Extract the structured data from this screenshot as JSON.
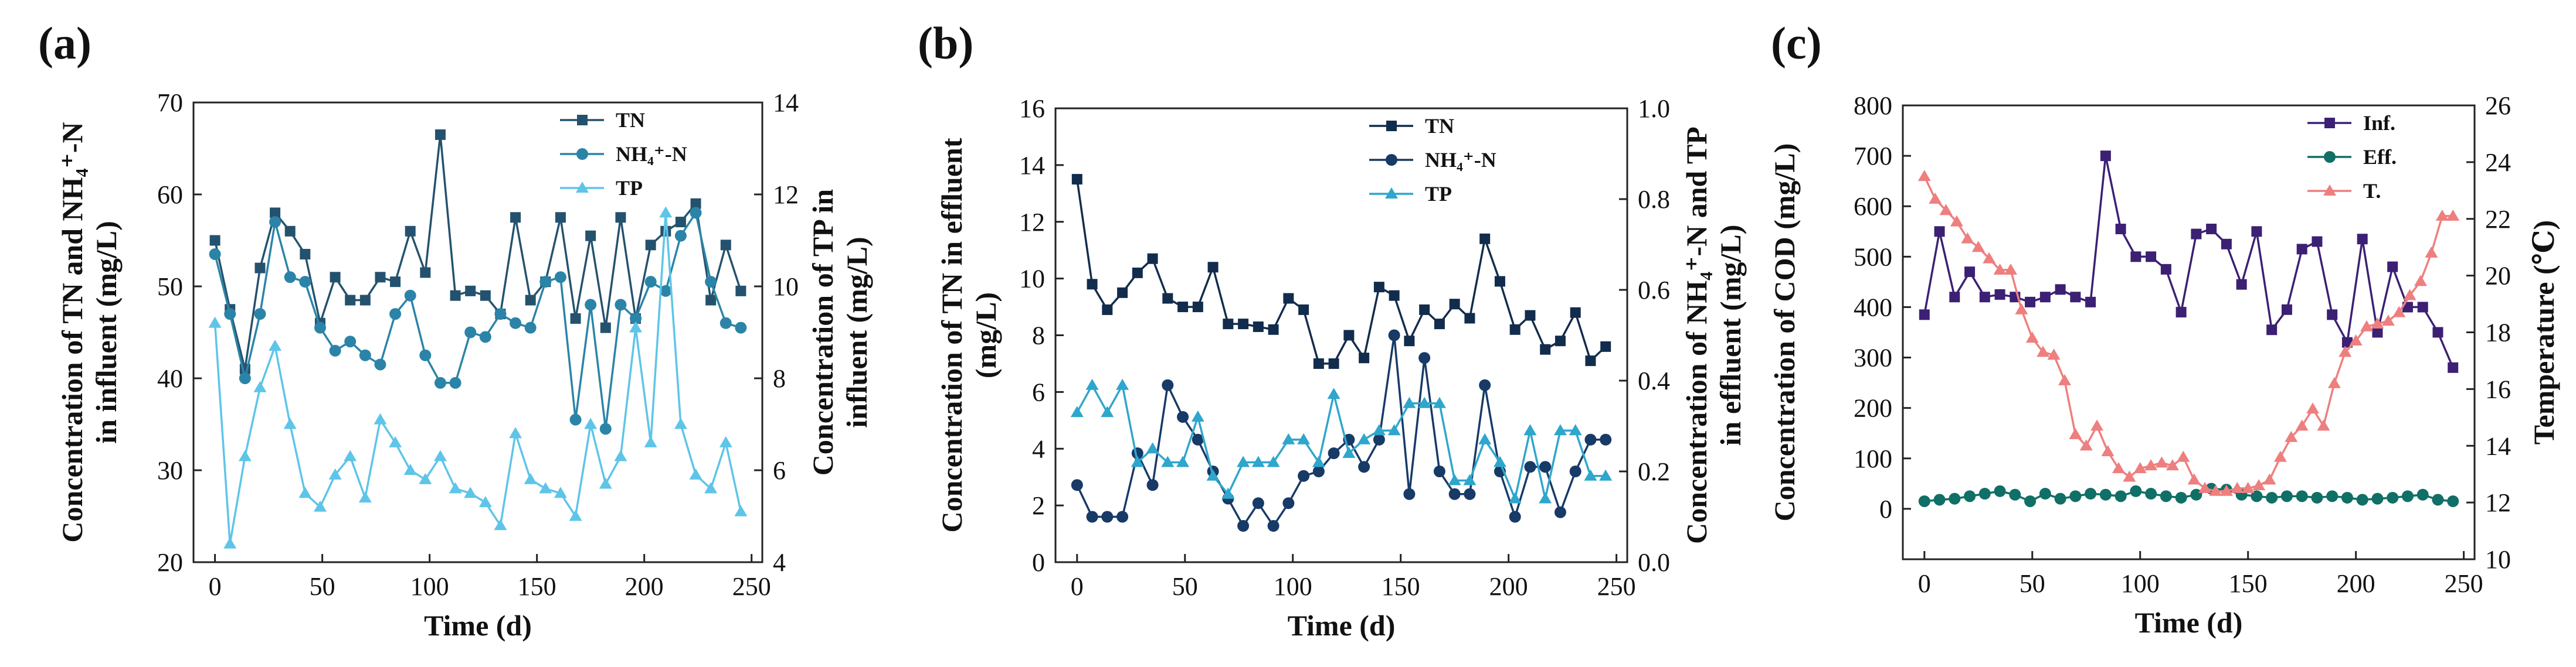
{
  "chart_data": [
    {
      "type": "line",
      "panel_label": "(a)",
      "x_label": "Time (d)",
      "xlim": [
        -10,
        255
      ],
      "x_ticks": [
        0,
        50,
        100,
        150,
        200,
        250
      ],
      "y_label": [
        "Concentration of TN and NH₄⁺-N",
        "in influent (mg/L)"
      ],
      "ylim": [
        20,
        70
      ],
      "y_ticks": [
        20,
        30,
        40,
        50,
        60,
        70
      ],
      "y2_label": [
        "Concentration of TP in",
        "influent (mg/L)"
      ],
      "y2lim": [
        4,
        14
      ],
      "y2_ticks": [
        4,
        6,
        8,
        10,
        12,
        14
      ],
      "legend_position": "top-right",
      "series": [
        {
          "name": "TN",
          "marker": "square",
          "color": "#24526e",
          "axis": "left",
          "x": [
            0,
            7,
            14,
            21,
            28,
            35,
            42,
            49,
            56,
            63,
            70,
            77,
            84,
            91,
            98,
            105,
            112,
            119,
            126,
            133,
            140,
            147,
            154,
            161,
            168,
            175,
            182,
            189,
            196,
            203,
            210,
            217,
            224,
            231,
            238,
            245
          ],
          "y": [
            55,
            47.5,
            41,
            52,
            58,
            56,
            53.5,
            46,
            51,
            48.5,
            48.5,
            51,
            50.5,
            56,
            51.5,
            66.5,
            49,
            49.5,
            49,
            47,
            57.5,
            48.5,
            50.5,
            57.5,
            46.5,
            55.5,
            45.5,
            57.5,
            46.5,
            54.5,
            56,
            57,
            59,
            48.5,
            54.5,
            49.5
          ]
        },
        {
          "name": "NH₄⁺-N",
          "marker": "circle",
          "color": "#2b84a8",
          "axis": "left",
          "x": [
            0,
            7,
            14,
            21,
            28,
            35,
            42,
            49,
            56,
            63,
            70,
            77,
            84,
            91,
            98,
            105,
            112,
            119,
            126,
            133,
            140,
            147,
            154,
            161,
            168,
            175,
            182,
            189,
            196,
            203,
            210,
            217,
            224,
            231,
            238,
            245
          ],
          "y": [
            53.5,
            47,
            40,
            47,
            57,
            51,
            50.5,
            45.5,
            43,
            44,
            42.5,
            41.5,
            47,
            49,
            42.5,
            39.5,
            39.5,
            45,
            44.5,
            47,
            46,
            45.5,
            50.5,
            51,
            35.5,
            48,
            34.5,
            48,
            46.5,
            50.5,
            49.5,
            55.5,
            58,
            50.5,
            46,
            45.5
          ]
        },
        {
          "name": "TP",
          "marker": "triangle",
          "color": "#5ec5e8",
          "axis": "right",
          "x": [
            0,
            7,
            14,
            21,
            28,
            35,
            42,
            49,
            56,
            63,
            70,
            77,
            84,
            91,
            98,
            105,
            112,
            119,
            126,
            133,
            140,
            147,
            154,
            161,
            168,
            175,
            182,
            189,
            196,
            203,
            210,
            217,
            224,
            231,
            238,
            245
          ],
          "y": [
            9.2,
            4.4,
            6.3,
            7.8,
            8.7,
            7,
            5.5,
            5.2,
            5.9,
            6.3,
            5.4,
            7.1,
            6.6,
            6,
            5.8,
            6.3,
            5.6,
            5.5,
            5.3,
            4.8,
            6.8,
            5.8,
            5.6,
            5.5,
            5,
            7,
            5.7,
            6.3,
            9.1,
            6.6,
            11.6,
            7,
            5.9,
            5.6,
            6.6,
            5.1
          ]
        }
      ]
    },
    {
      "type": "line",
      "panel_label": "(b)",
      "x_label": "Time (d)",
      "xlim": [
        -10,
        255
      ],
      "x_ticks": [
        0,
        50,
        100,
        150,
        200,
        250
      ],
      "y_label": [
        "Concentration of TN in effluent",
        "(mg/L)"
      ],
      "ylim": [
        0,
        16
      ],
      "y_ticks": [
        0,
        2,
        4,
        6,
        8,
        10,
        12,
        14,
        16
      ],
      "y2_label": [
        "Concentration of NH₄⁺-N and TP",
        "in effluent (mg/L)"
      ],
      "y2lim": [
        0,
        1
      ],
      "y2_ticks": [
        "0.0",
        "0.2",
        "0.4",
        "0.6",
        "0.8",
        "1.0"
      ],
      "legend_position": "top-right",
      "series": [
        {
          "name": "TN",
          "marker": "square",
          "color": "#122c4d",
          "axis": "left",
          "x": [
            0,
            7,
            14,
            21,
            28,
            35,
            42,
            49,
            56,
            63,
            70,
            77,
            84,
            91,
            98,
            105,
            112,
            119,
            126,
            133,
            140,
            147,
            154,
            161,
            168,
            175,
            182,
            189,
            196,
            203,
            210,
            217,
            224,
            231,
            238,
            245
          ],
          "y": [
            13.5,
            9.8,
            8.9,
            9.5,
            10.2,
            10.7,
            9.3,
            9.0,
            9.0,
            10.4,
            8.4,
            8.4,
            8.3,
            8.2,
            9.3,
            8.9,
            7.0,
            7.0,
            8.0,
            7.2,
            9.7,
            9.4,
            7.8,
            8.9,
            8.4,
            9.1,
            8.6,
            11.4,
            9.9,
            8.2,
            8.7,
            7.5,
            7.8,
            8.8,
            7.1,
            7.6
          ]
        },
        {
          "name": "NH₄⁺-N",
          "marker": "circle",
          "color": "#173a67",
          "axis": "right",
          "x": [
            0,
            7,
            14,
            21,
            28,
            35,
            42,
            49,
            56,
            63,
            70,
            77,
            84,
            91,
            98,
            105,
            112,
            119,
            126,
            133,
            140,
            147,
            154,
            161,
            168,
            175,
            182,
            189,
            196,
            203,
            210,
            217,
            224,
            231,
            238,
            245
          ],
          "y": [
            0.17,
            0.1,
            0.1,
            0.1,
            0.24,
            0.17,
            0.39,
            0.32,
            0.27,
            0.2,
            0.14,
            0.08,
            0.13,
            0.08,
            0.13,
            0.19,
            0.2,
            0.24,
            0.27,
            0.21,
            0.27,
            0.5,
            0.15,
            0.45,
            0.2,
            0.15,
            0.15,
            0.39,
            0.2,
            0.1,
            0.21,
            0.21,
            0.11,
            0.2,
            0.27,
            0.27
          ]
        },
        {
          "name": "TP",
          "marker": "triangle",
          "color": "#2fa6cc",
          "axis": "right",
          "x": [
            0,
            7,
            14,
            21,
            28,
            35,
            42,
            49,
            56,
            63,
            70,
            77,
            84,
            91,
            98,
            105,
            112,
            119,
            126,
            133,
            140,
            147,
            154,
            161,
            168,
            175,
            182,
            189,
            196,
            203,
            210,
            217,
            224,
            231,
            238,
            245
          ],
          "y": [
            0.33,
            0.39,
            0.33,
            0.39,
            0.22,
            0.25,
            0.22,
            0.22,
            0.32,
            0.19,
            0.15,
            0.22,
            0.22,
            0.22,
            0.27,
            0.27,
            0.22,
            0.37,
            0.24,
            0.27,
            0.29,
            0.29,
            0.35,
            0.35,
            0.35,
            0.18,
            0.18,
            0.27,
            0.22,
            0.14,
            0.29,
            0.14,
            0.29,
            0.29,
            0.19,
            0.19
          ]
        }
      ]
    },
    {
      "type": "line",
      "panel_label": "(c)",
      "x_label": "Time (d)",
      "xlim": [
        -10,
        255
      ],
      "x_ticks": [
        0,
        50,
        100,
        150,
        200,
        250
      ],
      "y_label": [
        "Concentration of COD (mg/L)"
      ],
      "ylim": [
        -100,
        800
      ],
      "y_ticks": [
        0,
        100,
        200,
        300,
        400,
        500,
        600,
        700,
        800
      ],
      "y2_label": [
        "Temperature (℃)"
      ],
      "y2lim": [
        10,
        26
      ],
      "y2_ticks": [
        10,
        12,
        14,
        16,
        18,
        20,
        22,
        24,
        26
      ],
      "legend_position": "top-right",
      "series": [
        {
          "name": "Inf.",
          "marker": "square",
          "color": "#3c2073",
          "axis": "left",
          "x": [
            0,
            7,
            14,
            21,
            28,
            35,
            42,
            49,
            56,
            63,
            70,
            77,
            84,
            91,
            98,
            105,
            112,
            119,
            126,
            133,
            140,
            147,
            154,
            161,
            168,
            175,
            182,
            189,
            196,
            203,
            210,
            217,
            224,
            231,
            238,
            245
          ],
          "y": [
            385,
            550,
            420,
            470,
            420,
            425,
            420,
            410,
            420,
            435,
            420,
            410,
            700,
            555,
            500,
            500,
            475,
            390,
            545,
            555,
            525,
            445,
            550,
            355,
            395,
            515,
            530,
            385,
            330,
            535,
            350,
            480,
            400,
            400,
            350,
            280
          ]
        },
        {
          "name": "Eff.",
          "marker": "circle",
          "color": "#106f66",
          "axis": "left",
          "x": [
            0,
            7,
            14,
            21,
            28,
            35,
            42,
            49,
            56,
            63,
            70,
            77,
            84,
            91,
            98,
            105,
            112,
            119,
            126,
            133,
            140,
            147,
            154,
            161,
            168,
            175,
            182,
            189,
            196,
            203,
            210,
            217,
            224,
            231,
            238,
            245
          ],
          "y": [
            15,
            18,
            20,
            25,
            30,
            35,
            28,
            15,
            30,
            20,
            25,
            30,
            28,
            25,
            35,
            30,
            25,
            22,
            28,
            40,
            38,
            28,
            25,
            22,
            25,
            25,
            22,
            25,
            22,
            18,
            20,
            22,
            25,
            28,
            18,
            15
          ]
        },
        {
          "name": "T.",
          "marker": "triangle",
          "color": "#ee7f7f",
          "axis": "right",
          "x": [
            0,
            5,
            10,
            15,
            20,
            25,
            30,
            35,
            40,
            45,
            50,
            55,
            60,
            65,
            70,
            75,
            80,
            85,
            90,
            95,
            100,
            105,
            110,
            115,
            120,
            125,
            130,
            135,
            140,
            145,
            150,
            155,
            160,
            165,
            170,
            175,
            180,
            185,
            190,
            195,
            200,
            205,
            210,
            215,
            220,
            225,
            230,
            235,
            240,
            245
          ],
          "y": [
            23.5,
            22.7,
            22.3,
            21.9,
            21.3,
            21.0,
            20.6,
            20.2,
            20.2,
            18.8,
            17.8,
            17.3,
            17.2,
            16.3,
            14.4,
            14.0,
            14.7,
            13.8,
            13.2,
            12.9,
            13.2,
            13.3,
            13.4,
            13.3,
            13.6,
            12.8,
            12.5,
            12.4,
            12.4,
            12.5,
            12.5,
            12.6,
            12.8,
            13.6,
            14.3,
            14.7,
            15.3,
            14.7,
            16.2,
            17.3,
            17.7,
            18.2,
            18.3,
            18.4,
            18.7,
            19.3,
            19.8,
            20.8,
            22.1,
            22.1
          ]
        }
      ]
    }
  ]
}
